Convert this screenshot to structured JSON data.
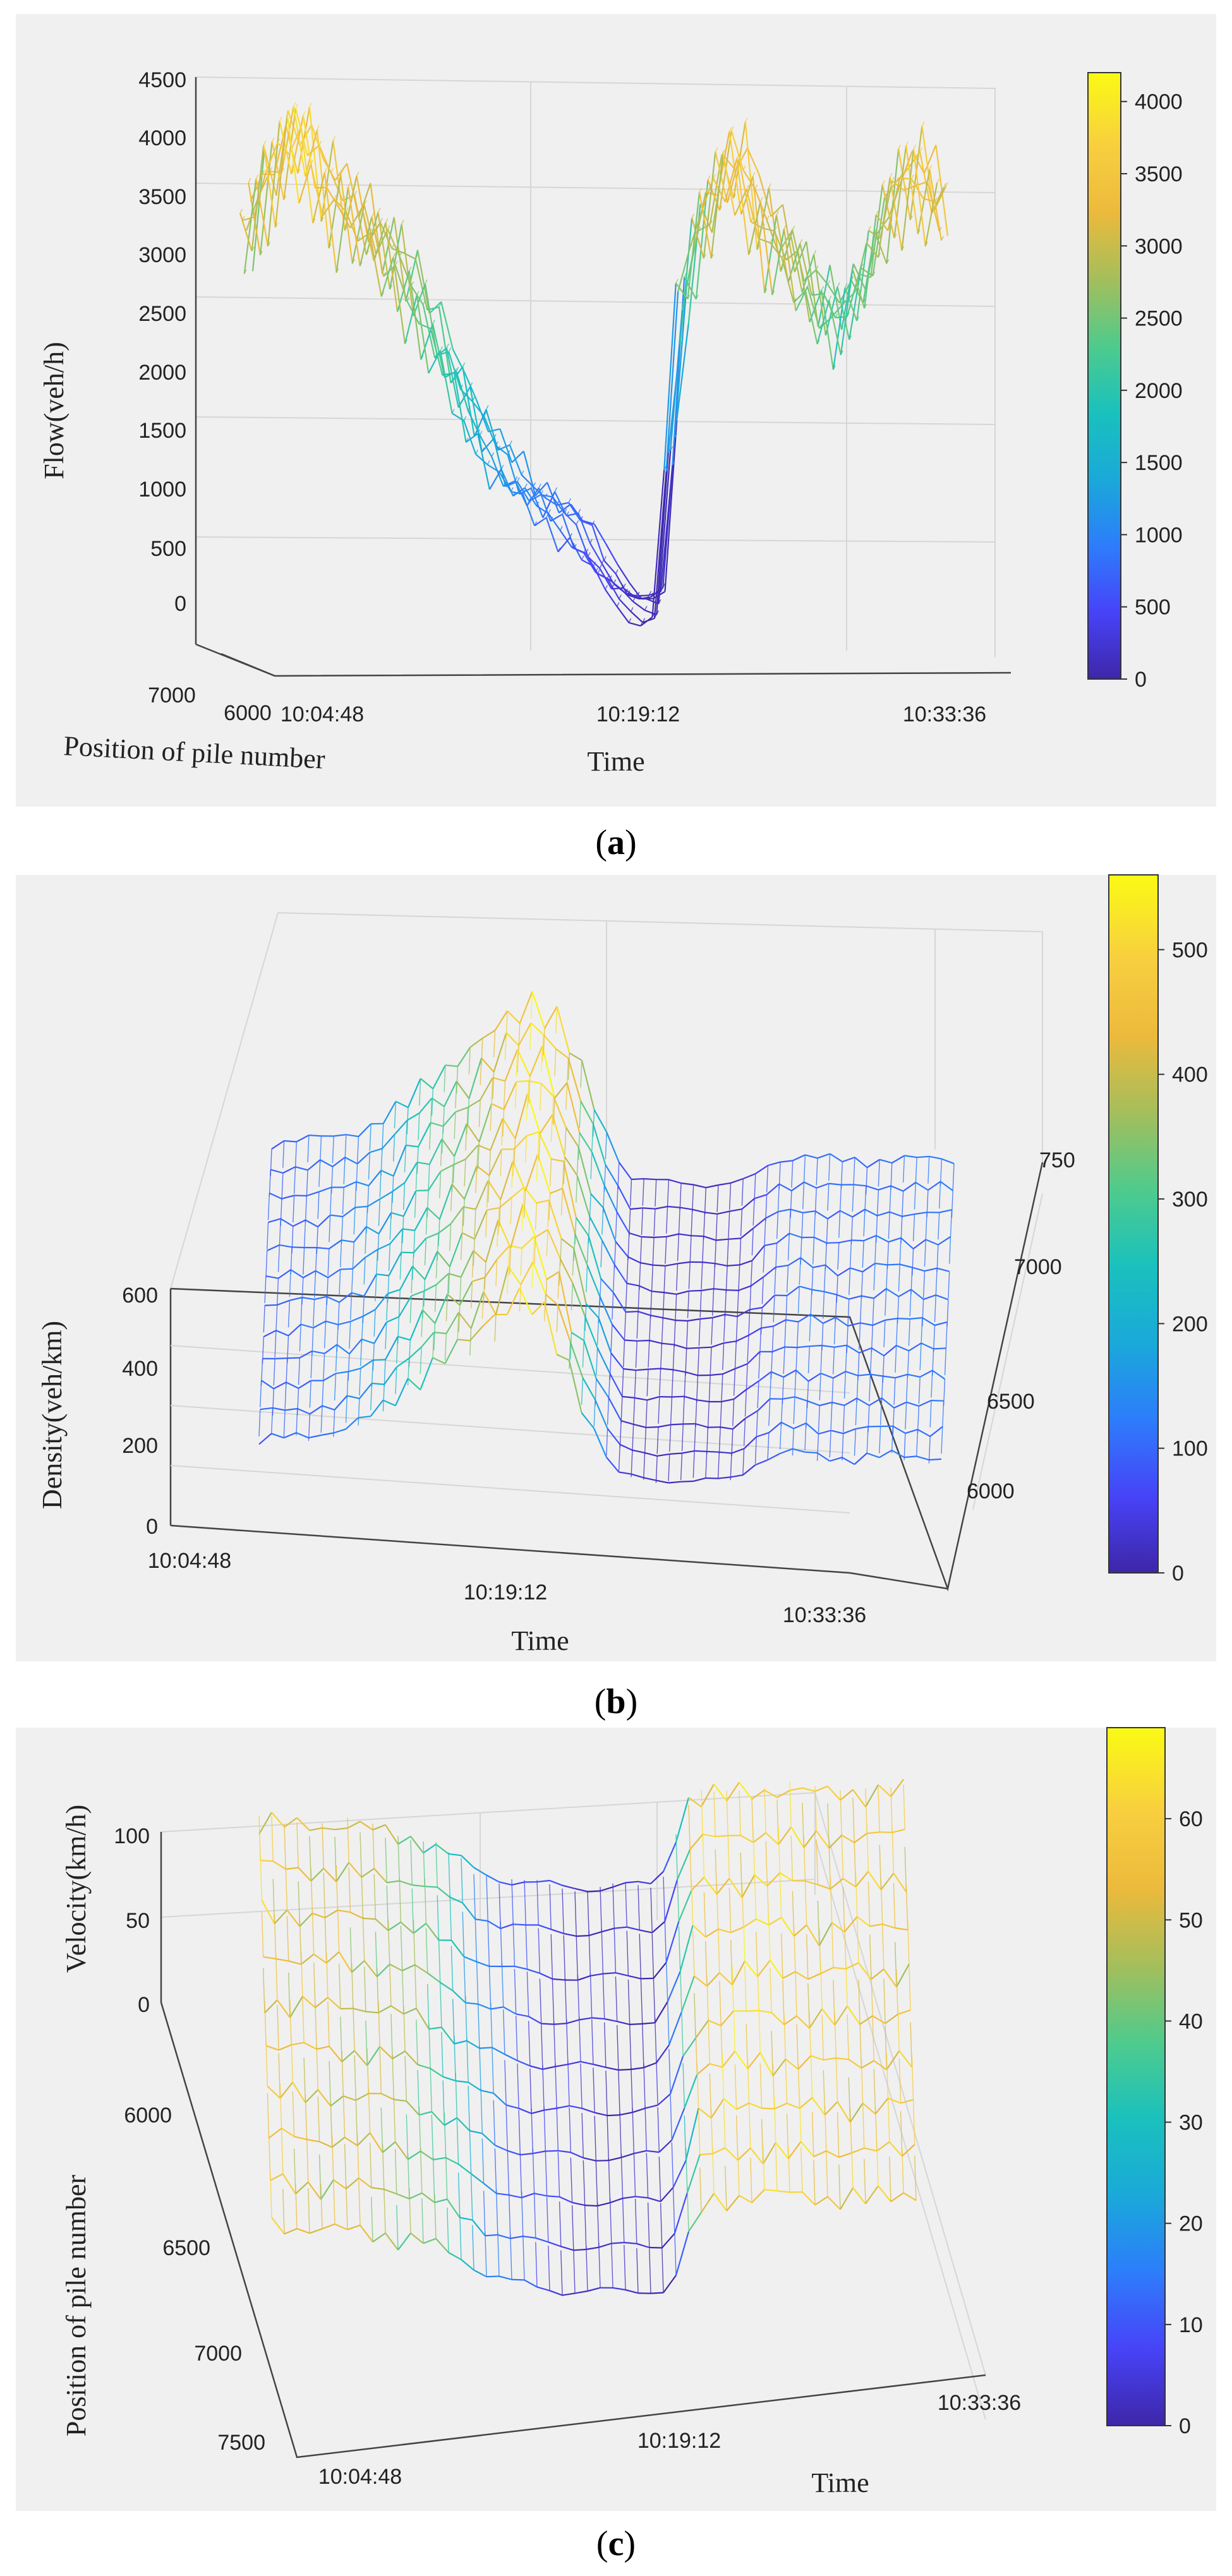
{
  "colormap": [
    "#3e26a8",
    "#4743f8",
    "#2d7dfb",
    "#1aa9d9",
    "#1ac1bd",
    "#4fcb8c",
    "#a5be5b",
    "#ecba3c",
    "#f8cf3f",
    "#fafa14"
  ],
  "captions": {
    "a": {
      "open": "(",
      "letter": "a",
      "close": ")"
    },
    "b": {
      "open": "(",
      "letter": "b",
      "close": ")"
    },
    "c": {
      "open": "(",
      "letter": "c",
      "close": ")"
    }
  },
  "chart_data": [
    {
      "id": "a",
      "type": "surface3d",
      "zlabel": "Flow(veh/h)",
      "xlabel": "Time",
      "ylabel": "Position of pile number",
      "z_ticks": [
        "0",
        "500",
        "1000",
        "1500",
        "2000",
        "2500",
        "3000",
        "3500",
        "4000",
        "4500"
      ],
      "time_ticks": [
        "10:04:48",
        "10:19:12",
        "10:33:36"
      ],
      "position_ticks": [
        "7000",
        "6000"
      ],
      "colorbar_ticks": [
        "0",
        "500",
        "1000",
        "1500",
        "2000",
        "2500",
        "3000",
        "3500",
        "4000"
      ],
      "clim": [
        0,
        4200
      ],
      "zlim": [
        0,
        4500
      ],
      "time_profile": [
        2900,
        3300,
        3600,
        3200,
        3000,
        2800,
        2600,
        2200,
        1800,
        1400,
        1100,
        900,
        800,
        600,
        300,
        100,
        50,
        2500,
        3100,
        3400,
        2900,
        2700,
        2400,
        2200,
        2500,
        3100,
        3300,
        3000
      ]
    },
    {
      "id": "b",
      "type": "surface3d",
      "zlabel": "Density(veh/km)",
      "xlabel": "Time",
      "z_ticks": [
        "0",
        "200",
        "400",
        "600"
      ],
      "time_ticks": [
        "10:04:48",
        "10:19:12",
        "10:33:36"
      ],
      "position_ticks": [
        "6000",
        "6500",
        "7000",
        "750"
      ],
      "colorbar_ticks": [
        "0",
        "100",
        "200",
        "300",
        "400",
        "500"
      ],
      "clim": [
        0,
        560
      ],
      "zlim": [
        0,
        600
      ],
      "time_profile": [
        90,
        100,
        110,
        130,
        180,
        260,
        320,
        380,
        460,
        520,
        420,
        200,
        30,
        20,
        20,
        20,
        30,
        90,
        110,
        100,
        100,
        110,
        110,
        110
      ]
    },
    {
      "id": "c",
      "type": "surface3d",
      "zlabel": "Velocity(km/h)",
      "xlabel": "Time",
      "ylabel": "Position of pile number",
      "z_ticks": [
        "0",
        "50",
        "100"
      ],
      "time_ticks": [
        "10:04:48",
        "10:19:12",
        "10:33:36"
      ],
      "position_ticks": [
        "6000",
        "6500",
        "7000",
        "7500"
      ],
      "colorbar_ticks": [
        "0",
        "10",
        "20",
        "30",
        "40",
        "50",
        "60"
      ],
      "clim": [
        0,
        69
      ],
      "zlim": [
        0,
        100
      ],
      "time_profile": [
        55,
        52,
        50,
        48,
        45,
        40,
        30,
        18,
        10,
        6,
        4,
        2,
        2,
        2,
        55,
        58,
        60,
        57,
        55,
        56,
        54,
        55
      ]
    }
  ]
}
